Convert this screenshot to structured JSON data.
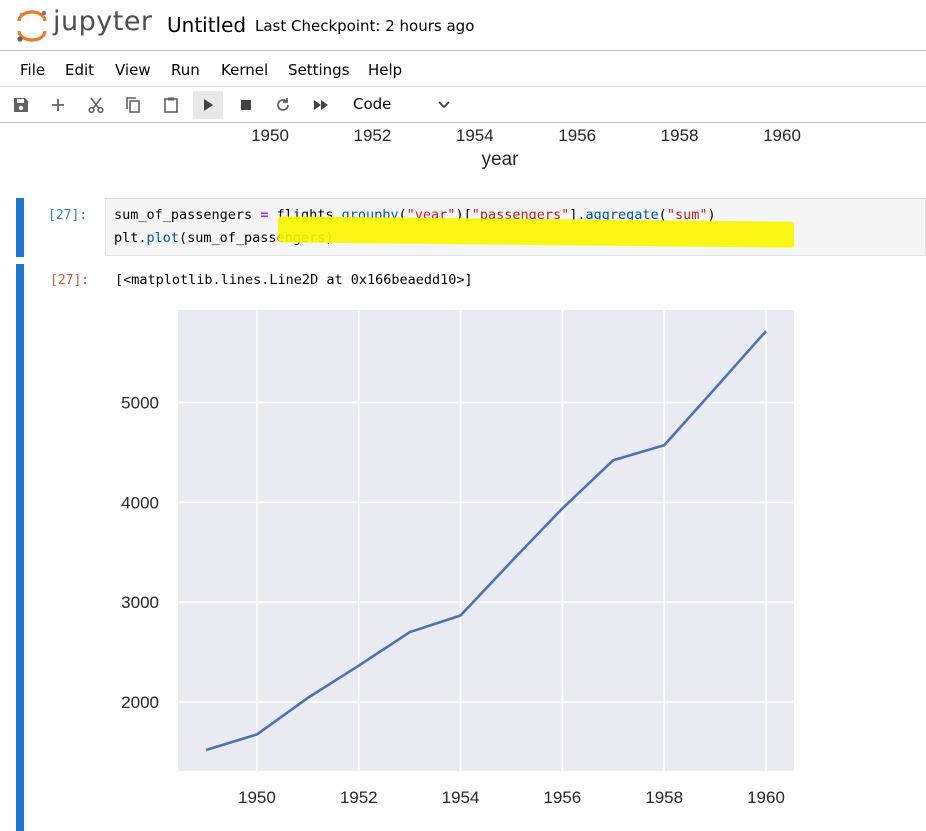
{
  "header": {
    "logo_text": "jupyter",
    "notebook_title": "Untitled",
    "checkpoint": "Last Checkpoint: 2 hours ago"
  },
  "menu": {
    "items": [
      "File",
      "Edit",
      "View",
      "Run",
      "Kernel",
      "Settings",
      "Help"
    ]
  },
  "toolbar": {
    "buttons": [
      "save-icon",
      "add-icon",
      "cut-icon",
      "copy-icon",
      "paste-icon",
      "run-icon",
      "stop-icon",
      "restart-icon",
      "fast-forward-icon"
    ],
    "cell_type": "Code"
  },
  "prev_output": {
    "x_ticks": [
      "1950",
      "1952",
      "1954",
      "1956",
      "1958",
      "1960"
    ],
    "xlabel": "year"
  },
  "cell": {
    "in_prompt": "[27]:",
    "code_line1": {
      "var": "sum_of_passengers ",
      "op": "=",
      "pre": " flights.",
      "m1": "groupby",
      "p1": "(",
      "s1": "\"year\"",
      "p2": ")[",
      "s2": "\"passengers\"",
      "p3": "].",
      "m2": "aggregate",
      "p4": "(",
      "s3": "\"sum\"",
      "p5": ")"
    },
    "code_line2": {
      "pre": "plt.",
      "m1": "plot",
      "post": "(sum_of_passengers)"
    },
    "out_prompt": "[27]:",
    "out_text": "[<matplotlib.lines.Line2D at 0x166beaedd10>]"
  },
  "chart_data": {
    "type": "line",
    "x": [
      1949,
      1950,
      1951,
      1952,
      1953,
      1954,
      1955,
      1956,
      1957,
      1958,
      1959,
      1960
    ],
    "series": [
      {
        "values": [
          1520,
          1676,
          2042,
          2364,
          2700,
          2867,
          3408,
          3939,
          4421,
          4572,
          5140,
          5714
        ]
      }
    ],
    "x_ticks": [
      "1950",
      "1952",
      "1954",
      "1956",
      "1958",
      "1960"
    ],
    "y_ticks": [
      "2000",
      "3000",
      "4000",
      "5000"
    ],
    "xlim": [
      1948.45,
      1960.55
    ],
    "ylim": [
      1310,
      5925
    ],
    "grid": true,
    "colors": {
      "line": "#4c72b0",
      "background": "#eaeaf2",
      "grid": "#ffffff"
    }
  }
}
